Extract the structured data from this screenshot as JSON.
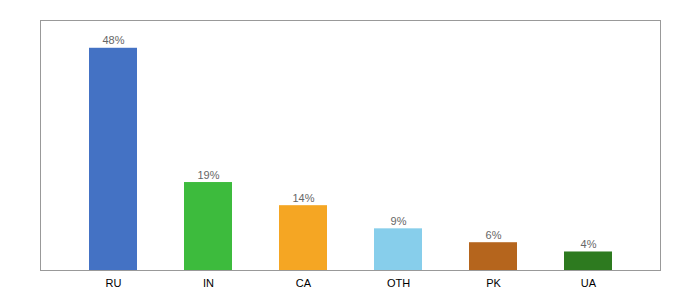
{
  "chart_data": {
    "type": "bar",
    "categories": [
      "RU",
      "IN",
      "CA",
      "OTH",
      "PK",
      "UA"
    ],
    "values": [
      48,
      19,
      14,
      9,
      6,
      4
    ],
    "value_labels": [
      "48%",
      "19%",
      "14%",
      "9%",
      "6%",
      "4%"
    ],
    "colors": [
      "#4472c4",
      "#3dbb3d",
      "#f5a623",
      "#87ceeb",
      "#b5651d",
      "#2d7a1f"
    ],
    "data_labels": true,
    "ylim": [
      0,
      54
    ],
    "tick_labels": "x",
    "grid": false
  }
}
